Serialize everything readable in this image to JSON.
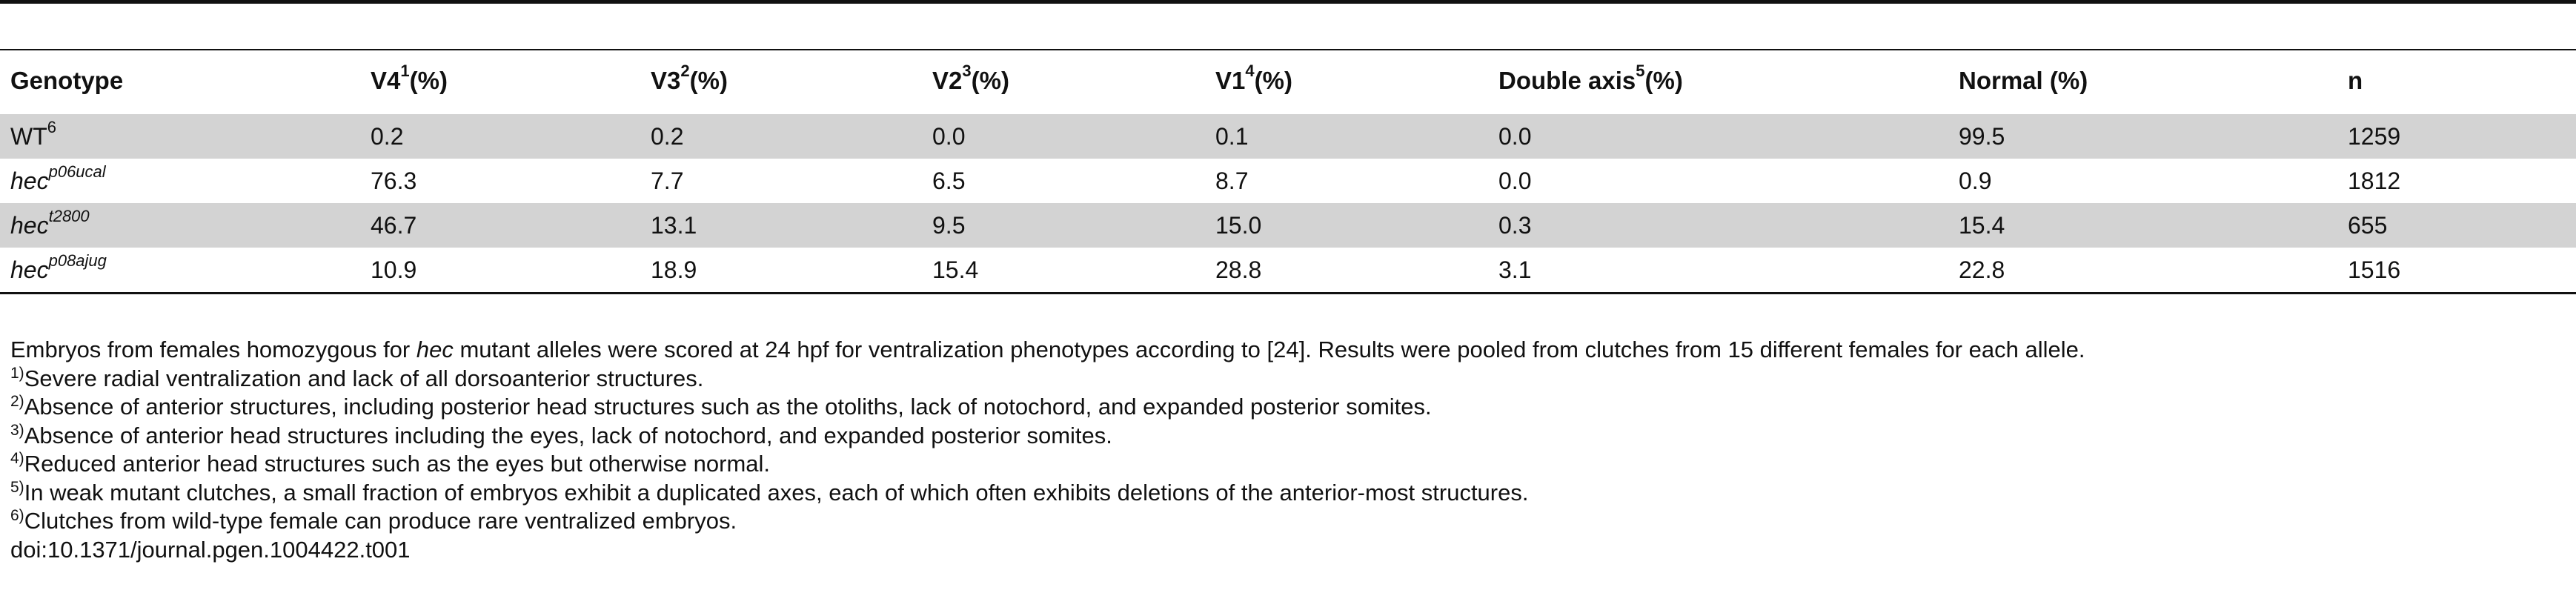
{
  "table": {
    "headers": [
      {
        "text": "Genotype",
        "sup": ""
      },
      {
        "text": "V4",
        "sup": "1",
        "suffix": " (%)"
      },
      {
        "text": "V3",
        "sup": "2",
        "suffix": " (%)"
      },
      {
        "text": "V2",
        "sup": "3",
        "suffix": " (%)"
      },
      {
        "text": "V1",
        "sup": "4",
        "suffix": " (%)"
      },
      {
        "text": "Double axis",
        "sup": "5",
        "suffix": " (%)"
      },
      {
        "text": "Normal (%)",
        "sup": ""
      },
      {
        "text": "n",
        "sup": ""
      }
    ],
    "rows": [
      {
        "genotype": "WT",
        "gsup": "6",
        "values": [
          "0.2",
          "0.2",
          "0.0",
          "0.1",
          "0.0",
          "99.5",
          "1259"
        ]
      },
      {
        "genotype": "hec",
        "gsup": "p06ucal",
        "values": [
          "76.3",
          "7.7",
          "6.5",
          "8.7",
          "0.0",
          "0.9",
          "1812"
        ]
      },
      {
        "genotype": "hec",
        "gsup": "t2800",
        "values": [
          "46.7",
          "13.1",
          "9.5",
          "15.0",
          "0.3",
          "15.4",
          "655"
        ]
      },
      {
        "genotype": "hec",
        "gsup": "p08ajug",
        "values": [
          "10.9",
          "18.9",
          "15.4",
          "28.8",
          "3.1",
          "22.8",
          "1516"
        ]
      }
    ]
  },
  "notes": {
    "main_pre": "Embryos from females homozygous for ",
    "main_italic": "hec",
    "main_post": " mutant alleles were scored at 24 hpf for ventralization phenotypes according to [24]. Results were pooled from clutches from 15 different females for each allele.",
    "footnotes": [
      {
        "mark": "1)",
        "text": "Severe radial ventralization and lack of all dorsoanterior structures."
      },
      {
        "mark": "2)",
        "text": "Absence of anterior structures, including posterior head structures such as the otoliths, lack of notochord, and expanded posterior somites."
      },
      {
        "mark": "3)",
        "text": "Absence of anterior head structures including the eyes, lack of notochord, and expanded posterior somites."
      },
      {
        "mark": "4)",
        "text": "Reduced anterior head structures such as the eyes but otherwise normal."
      },
      {
        "mark": "5)",
        "text": "In weak mutant clutches, a small fraction of embryos exhibit a duplicated axes, each of which often exhibits deletions of the anterior-most structures."
      },
      {
        "mark": "6)",
        "text": "Clutches from wild-type female can produce rare ventralized embryos."
      }
    ],
    "doi": "doi:10.1371/journal.pgen.1004422.t001"
  }
}
